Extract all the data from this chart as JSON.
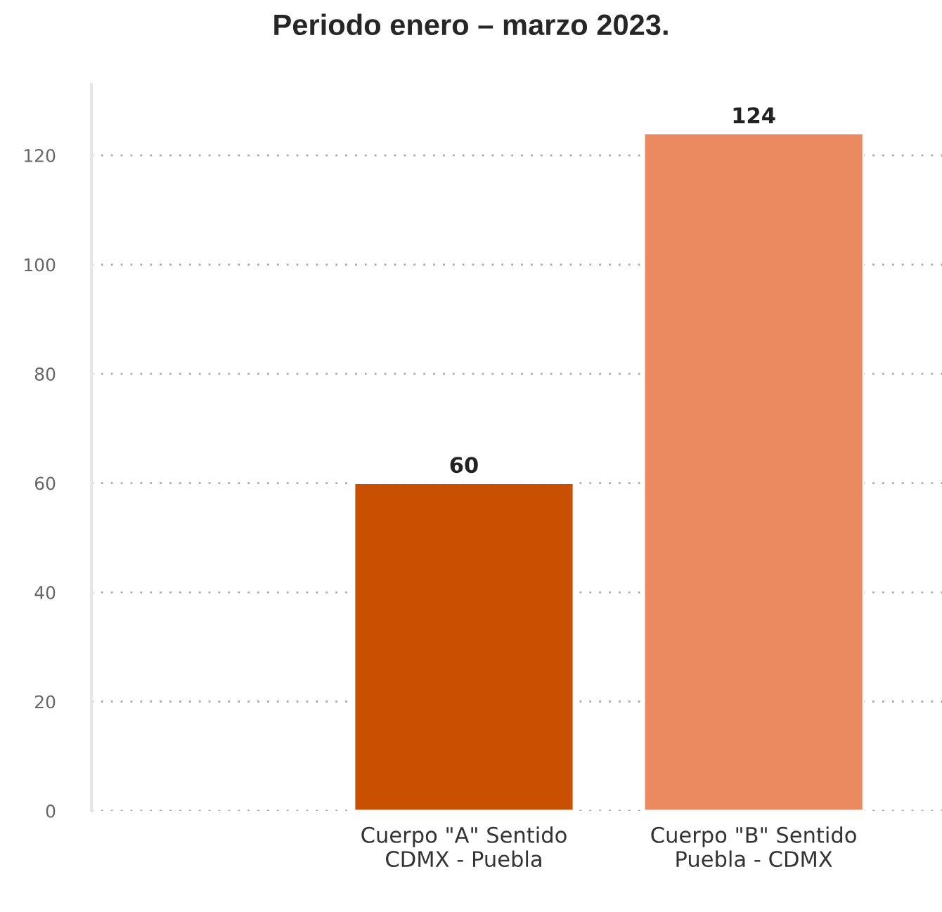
{
  "chart_data": {
    "type": "bar",
    "title": "Periodo enero – marzo 2023.",
    "categories": [
      null,
      "Cuerpo \"A\" Sentido\nCDMX - Puebla",
      "Cuerpo \"B\" Sentido\nPuebla - CDMX"
    ],
    "values": [
      null,
      60,
      124
    ],
    "colors": [
      "#c85000",
      "#c85000",
      "#eb8a60"
    ],
    "ylim": [
      0,
      133
    ],
    "yticks": [
      0,
      20,
      40,
      60,
      80,
      100,
      120
    ],
    "grid": "y",
    "data_labels": true
  }
}
